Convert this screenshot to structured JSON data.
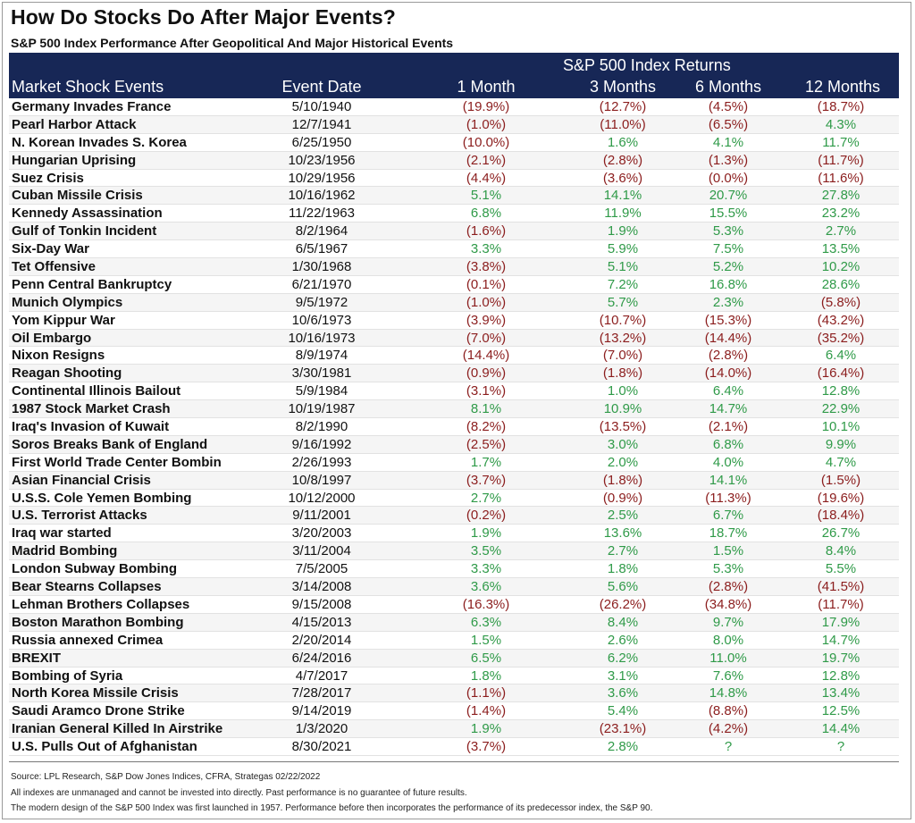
{
  "title": "How Do Stocks Do After Major Events?",
  "subtitle": "S&P 500 Index Performance After Geopolitical And Major Historical Events",
  "header": {
    "group_label": "S&P 500 Index Returns",
    "columns": [
      "Market Shock Events",
      "Event Date",
      "1 Month",
      "3 Months",
      "6 Months",
      "12 Months"
    ]
  },
  "colors": {
    "header_bg": "#172756",
    "negative": "#8b1d1d",
    "positive": "#2f9a48"
  },
  "rows": [
    {
      "event": "Germany Invades France",
      "date": "5/10/1940",
      "m1": "(19.9%)",
      "m3": "(12.7%)",
      "m6": "(4.5%)",
      "m12": "(18.7%)"
    },
    {
      "event": "Pearl Harbor Attack",
      "date": "12/7/1941",
      "m1": "(1.0%)",
      "m3": "(11.0%)",
      "m6": "(6.5%)",
      "m12": "4.3%"
    },
    {
      "event": "N. Korean Invades S. Korea",
      "date": "6/25/1950",
      "m1": "(10.0%)",
      "m3": "1.6%",
      "m6": "4.1%",
      "m12": "11.7%"
    },
    {
      "event": "Hungarian Uprising",
      "date": "10/23/1956",
      "m1": "(2.1%)",
      "m3": "(2.8%)",
      "m6": "(1.3%)",
      "m12": "(11.7%)"
    },
    {
      "event": "Suez Crisis",
      "date": "10/29/1956",
      "m1": "(4.4%)",
      "m3": "(3.6%)",
      "m6": "(0.0%)",
      "m12": "(11.6%)"
    },
    {
      "event": "Cuban Missile Crisis",
      "date": "10/16/1962",
      "m1": "5.1%",
      "m3": "14.1%",
      "m6": "20.7%",
      "m12": "27.8%"
    },
    {
      "event": "Kennedy Assassination",
      "date": "11/22/1963",
      "m1": "6.8%",
      "m3": "11.9%",
      "m6": "15.5%",
      "m12": "23.2%"
    },
    {
      "event": "Gulf of Tonkin Incident",
      "date": "8/2/1964",
      "m1": "(1.6%)",
      "m3": "1.9%",
      "m6": "5.3%",
      "m12": "2.7%"
    },
    {
      "event": "Six-Day War",
      "date": "6/5/1967",
      "m1": "3.3%",
      "m3": "5.9%",
      "m6": "7.5%",
      "m12": "13.5%"
    },
    {
      "event": "Tet Offensive",
      "date": "1/30/1968",
      "m1": "(3.8%)",
      "m3": "5.1%",
      "m6": "5.2%",
      "m12": "10.2%"
    },
    {
      "event": "Penn Central Bankruptcy",
      "date": "6/21/1970",
      "m1": "(0.1%)",
      "m3": "7.2%",
      "m6": "16.8%",
      "m12": "28.6%"
    },
    {
      "event": "Munich Olympics",
      "date": "9/5/1972",
      "m1": "(1.0%)",
      "m3": "5.7%",
      "m6": "2.3%",
      "m12": "(5.8%)"
    },
    {
      "event": "Yom Kippur War",
      "date": "10/6/1973",
      "m1": "(3.9%)",
      "m3": "(10.7%)",
      "m6": "(15.3%)",
      "m12": "(43.2%)"
    },
    {
      "event": "Oil Embargo",
      "date": "10/16/1973",
      "m1": "(7.0%)",
      "m3": "(13.2%)",
      "m6": "(14.4%)",
      "m12": "(35.2%)"
    },
    {
      "event": "Nixon Resigns",
      "date": "8/9/1974",
      "m1": "(14.4%)",
      "m3": "(7.0%)",
      "m6": "(2.8%)",
      "m12": "6.4%"
    },
    {
      "event": "Reagan Shooting",
      "date": "3/30/1981",
      "m1": "(0.9%)",
      "m3": "(1.8%)",
      "m6": "(14.0%)",
      "m12": "(16.4%)"
    },
    {
      "event": "Continental Illinois Bailout",
      "date": "5/9/1984",
      "m1": "(3.1%)",
      "m3": "1.0%",
      "m6": "6.4%",
      "m12": "12.8%"
    },
    {
      "event": "1987 Stock Market Crash",
      "date": "10/19/1987",
      "m1": "8.1%",
      "m3": "10.9%",
      "m6": "14.7%",
      "m12": "22.9%"
    },
    {
      "event": "Iraq's Invasion of Kuwait",
      "date": "8/2/1990",
      "m1": "(8.2%)",
      "m3": "(13.5%)",
      "m6": "(2.1%)",
      "m12": "10.1%"
    },
    {
      "event": "Soros Breaks Bank of England",
      "date": "9/16/1992",
      "m1": "(2.5%)",
      "m3": "3.0%",
      "m6": "6.8%",
      "m12": "9.9%"
    },
    {
      "event": "First World Trade Center Bombin",
      "date": "2/26/1993",
      "m1": "1.7%",
      "m3": "2.0%",
      "m6": "4.0%",
      "m12": "4.7%"
    },
    {
      "event": "Asian Financial Crisis",
      "date": "10/8/1997",
      "m1": "(3.7%)",
      "m3": "(1.8%)",
      "m6": "14.1%",
      "m12": "(1.5%)"
    },
    {
      "event": "U.S.S. Cole Yemen Bombing",
      "date": "10/12/2000",
      "m1": "2.7%",
      "m3": "(0.9%)",
      "m6": "(11.3%)",
      "m12": "(19.6%)"
    },
    {
      "event": "U.S. Terrorist Attacks",
      "date": "9/11/2001",
      "m1": "(0.2%)",
      "m3": "2.5%",
      "m6": "6.7%",
      "m12": "(18.4%)"
    },
    {
      "event": "Iraq war started",
      "date": "3/20/2003",
      "m1": "1.9%",
      "m3": "13.6%",
      "m6": "18.7%",
      "m12": "26.7%"
    },
    {
      "event": "Madrid Bombing",
      "date": "3/11/2004",
      "m1": "3.5%",
      "m3": "2.7%",
      "m6": "1.5%",
      "m12": "8.4%"
    },
    {
      "event": "London Subway Bombing",
      "date": "7/5/2005",
      "m1": "3.3%",
      "m3": "1.8%",
      "m6": "5.3%",
      "m12": "5.5%"
    },
    {
      "event": "Bear Stearns Collapses",
      "date": "3/14/2008",
      "m1": "3.6%",
      "m3": "5.6%",
      "m6": "(2.8%)",
      "m12": "(41.5%)"
    },
    {
      "event": "Lehman Brothers Collapses",
      "date": "9/15/2008",
      "m1": "(16.3%)",
      "m3": "(26.2%)",
      "m6": "(34.8%)",
      "m12": "(11.7%)"
    },
    {
      "event": "Boston Marathon Bombing",
      "date": "4/15/2013",
      "m1": "6.3%",
      "m3": "8.4%",
      "m6": "9.7%",
      "m12": "17.9%"
    },
    {
      "event": "Russia annexed Crimea",
      "date": "2/20/2014",
      "m1": "1.5%",
      "m3": "2.6%",
      "m6": "8.0%",
      "m12": "14.7%"
    },
    {
      "event": "BREXIT",
      "date": "6/24/2016",
      "m1": "6.5%",
      "m3": "6.2%",
      "m6": "11.0%",
      "m12": "19.7%"
    },
    {
      "event": "Bombing of Syria",
      "date": "4/7/2017",
      "m1": "1.8%",
      "m3": "3.1%",
      "m6": "7.6%",
      "m12": "12.8%"
    },
    {
      "event": "North Korea Missile Crisis",
      "date": "7/28/2017",
      "m1": "(1.1%)",
      "m3": "3.6%",
      "m6": "14.8%",
      "m12": "13.4%"
    },
    {
      "event": "Saudi Aramco Drone Strike",
      "date": "9/14/2019",
      "m1": "(1.4%)",
      "m3": "5.4%",
      "m6": "(8.8%)",
      "m12": "12.5%"
    },
    {
      "event": "Iranian General Killed In Airstrike",
      "date": "1/3/2020",
      "m1": "1.9%",
      "m3": "(23.1%)",
      "m6": "(4.2%)",
      "m12": "14.4%"
    },
    {
      "event": "U.S. Pulls Out of Afghanistan",
      "date": "8/30/2021",
      "m1": "(3.7%)",
      "m3": "2.8%",
      "m6": "?",
      "m12": "?"
    }
  ],
  "footnotes": [
    "Source: LPL Research, S&P Dow Jones Indices, CFRA, Strategas 02/22/2022",
    "All indexes are unmanaged and cannot be invested into directly.  Past performance is no guarantee of future results.",
    "The modern design of the S&P 500 Index was first launched in 1957. Performance before then incorporates the performance of its predecessor index, the S&P 90."
  ]
}
